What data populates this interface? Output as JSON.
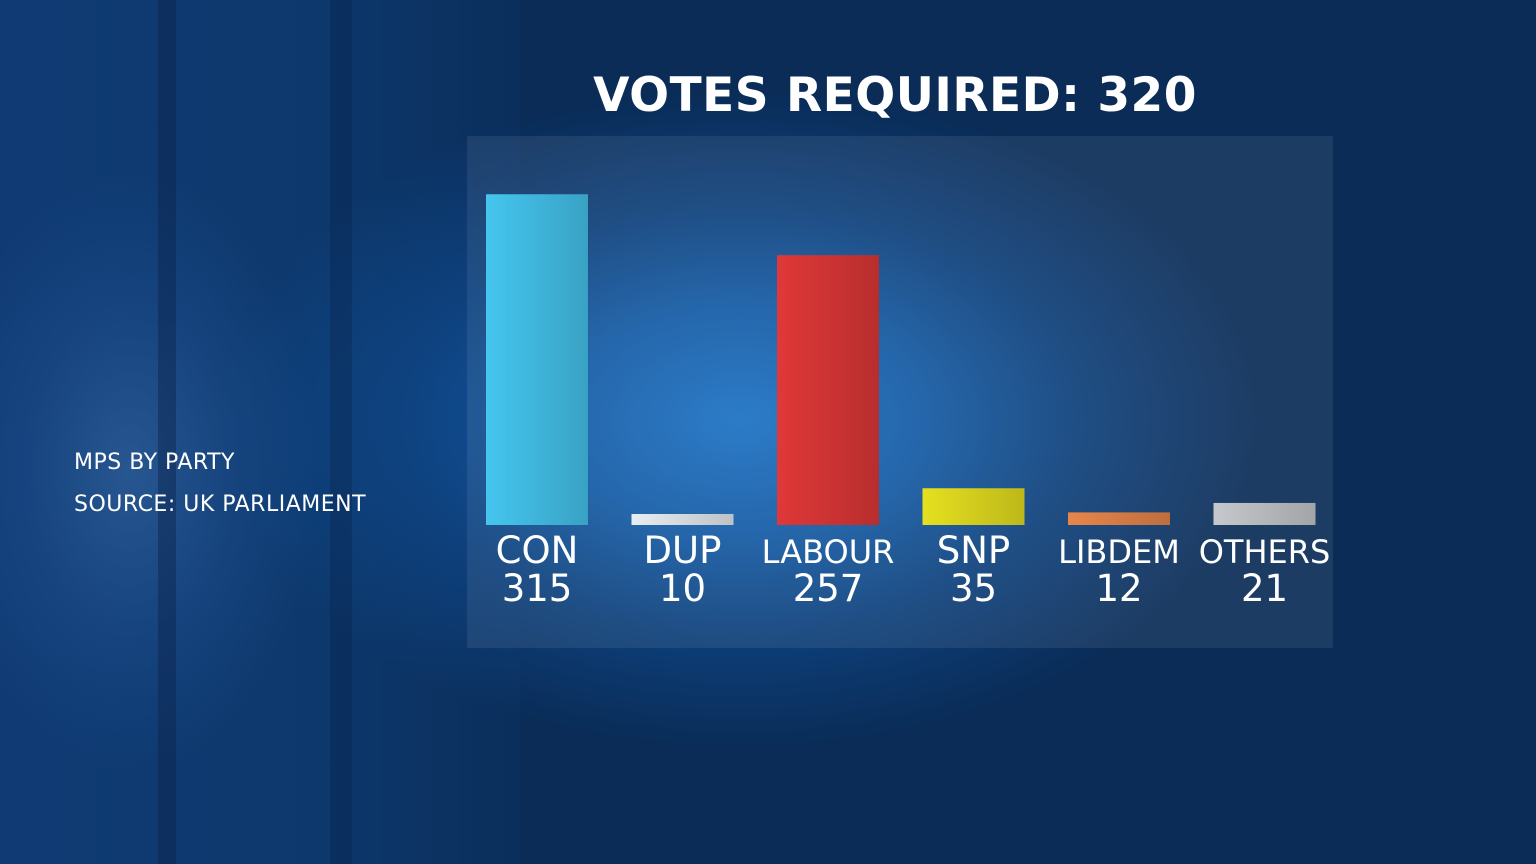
{
  "title": "VOTES REQUIRED: 320",
  "side_text": {
    "line1": "MPS BY PARTY",
    "line2": "SOURCE: UK PARLIAMENT"
  },
  "chart_data": {
    "type": "bar",
    "categories": [
      "CON",
      "DUP",
      "LABOUR",
      "SNP",
      "LIBDEM",
      "OTHERS"
    ],
    "values": [
      315,
      10,
      257,
      35,
      12,
      21
    ],
    "value_labels": [
      "315",
      "10",
      "257",
      "35",
      "12",
      "21"
    ],
    "colors": [
      "#45c6ef",
      "#e8edf2",
      "#e03838",
      "#e6e020",
      "#e8864a",
      "#c5c9cc"
    ],
    "ylim": [
      0,
      320
    ],
    "grid": false,
    "legend": "none"
  }
}
